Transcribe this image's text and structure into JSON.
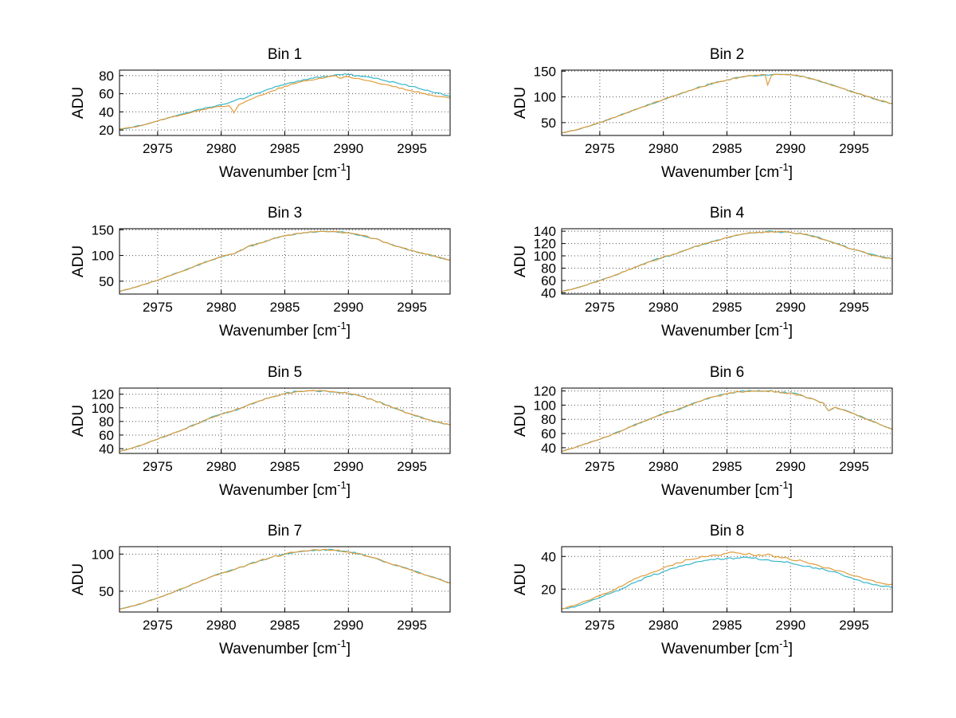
{
  "figure": {
    "background": "#ffffff",
    "ylabel": "ADU",
    "xlabel": "Wavenumber [cm⁻¹]",
    "xlabel_parts": {
      "pre": "Wavenumber [cm",
      "sup": "-1",
      "post": "]"
    },
    "series_colors": {
      "cyan": "#35b6c9",
      "orange": "#e09c3a"
    }
  },
  "chart_data": [
    {
      "type": "line",
      "title": "Bin 1",
      "xlabel": "Wavenumber [cm⁻¹]",
      "ylabel": "ADU",
      "xlim": [
        2972,
        2998
      ],
      "ylim": [
        14,
        86
      ],
      "xticks": [
        2975,
        2980,
        2985,
        2990,
        2995
      ],
      "yticks": [
        20,
        40,
        60,
        80
      ],
      "grid": true,
      "noise_amp": 0.9,
      "series": [
        {
          "name": "cyan-trace",
          "color": "#35b6c9",
          "x0": 2972,
          "dx": 1,
          "y": [
            21,
            23,
            26,
            30,
            34,
            38,
            42,
            45,
            48,
            52,
            56,
            61,
            66,
            70,
            74,
            77,
            79,
            81,
            81,
            79,
            77,
            74,
            71,
            68,
            64,
            61,
            57
          ]
        },
        {
          "name": "orange-trace",
          "color": "#e09c3a",
          "x": [
            2972,
            2973,
            2974,
            2975,
            2976,
            2977,
            2978,
            2979,
            2980,
            2980.6,
            2981,
            2981.4,
            2982,
            2983,
            2984,
            2985,
            2986,
            2987,
            2988,
            2988.5,
            2989,
            2989.4,
            2990,
            2991,
            2992,
            2993,
            2994,
            2995,
            2996,
            2997,
            2998
          ],
          "y": [
            21,
            23,
            26,
            30,
            34,
            37,
            41,
            44,
            46,
            47,
            39,
            48,
            52,
            58,
            63,
            68,
            72,
            75,
            77,
            79,
            80,
            77,
            79,
            76,
            73,
            70,
            66,
            63,
            60,
            57,
            55
          ]
        }
      ]
    },
    {
      "type": "line",
      "title": "Bin 2",
      "xlabel": "Wavenumber [cm⁻¹]",
      "ylabel": "ADU",
      "xlim": [
        2972,
        2998
      ],
      "ylim": [
        25,
        152
      ],
      "xticks": [
        2975,
        2980,
        2985,
        2990,
        2995
      ],
      "yticks": [
        50,
        100,
        150
      ],
      "grid": true,
      "noise_amp": 1.4,
      "series": [
        {
          "name": "cyan-trace",
          "color": "#35b6c9",
          "x0": 2972,
          "dx": 1,
          "y": [
            30,
            35,
            42,
            50,
            59,
            68,
            77,
            86,
            95,
            103,
            112,
            120,
            127,
            133,
            138,
            141,
            143,
            144,
            143,
            140,
            133,
            125,
            117,
            109,
            101,
            93,
            87
          ]
        },
        {
          "name": "orange-trace",
          "color": "#e09c3a",
          "x": [
            2972,
            2973,
            2974,
            2975,
            2976,
            2977,
            2978,
            2979,
            2980,
            2981,
            2982,
            2983,
            2984,
            2985,
            2986,
            2987,
            2988,
            2988.2,
            2988.5,
            2989,
            2990,
            2991,
            2992,
            2993,
            2994,
            2995,
            2996,
            2997,
            2998
          ],
          "y": [
            30,
            35,
            42,
            50,
            59,
            68,
            77,
            86,
            95,
            103,
            112,
            120,
            127,
            133,
            138,
            141,
            143,
            123,
            142,
            144,
            143,
            140,
            133,
            125,
            117,
            109,
            101,
            93,
            87
          ]
        }
      ]
    },
    {
      "type": "line",
      "title": "Bin 3",
      "xlabel": "Wavenumber [cm⁻¹]",
      "ylabel": "ADU",
      "xlim": [
        2972,
        2998
      ],
      "ylim": [
        25,
        152
      ],
      "xticks": [
        2975,
        2980,
        2985,
        2990,
        2995
      ],
      "yticks": [
        50,
        100,
        150
      ],
      "grid": true,
      "noise_amp": 1.4,
      "series": [
        {
          "name": "cyan-trace",
          "color": "#35b6c9",
          "x0": 2972,
          "dx": 1,
          "y": [
            30,
            37,
            44,
            52,
            61,
            70,
            80,
            89,
            98,
            103,
            116,
            124,
            132,
            138,
            143,
            146,
            147,
            146,
            144,
            139,
            133,
            125,
            117,
            110,
            103,
            97,
            91
          ]
        },
        {
          "name": "orange-trace",
          "color": "#e09c3a",
          "x0": 2972,
          "dx": 1,
          "y": [
            30,
            37,
            44,
            52,
            61,
            70,
            80,
            89,
            98,
            103,
            116,
            124,
            132,
            138,
            143,
            146,
            147,
            146,
            144,
            139,
            133,
            125,
            117,
            110,
            103,
            97,
            91
          ]
        }
      ]
    },
    {
      "type": "line",
      "title": "Bin 4",
      "xlabel": "Wavenumber [cm⁻¹]",
      "ylabel": "ADU",
      "xlim": [
        2972,
        2998
      ],
      "ylim": [
        38,
        144
      ],
      "xticks": [
        2975,
        2980,
        2985,
        2990,
        2995
      ],
      "yticks": [
        40,
        60,
        80,
        100,
        120,
        140
      ],
      "grid": true,
      "noise_amp": 1.3,
      "series": [
        {
          "name": "cyan-trace",
          "color": "#35b6c9",
          "x0": 2972,
          "dx": 1,
          "y": [
            42,
            47,
            53,
            60,
            67,
            75,
            83,
            91,
            98,
            103,
            111,
            118,
            124,
            130,
            134,
            137,
            139,
            139,
            138,
            135,
            131,
            124,
            117,
            110,
            104,
            99,
            95
          ]
        },
        {
          "name": "orange-trace",
          "color": "#e09c3a",
          "x0": 2972,
          "dx": 1,
          "y": [
            42,
            47,
            53,
            60,
            67,
            75,
            83,
            91,
            98,
            103,
            111,
            118,
            124,
            130,
            134,
            137,
            139,
            139,
            138,
            135,
            131,
            124,
            117,
            110,
            104,
            99,
            95
          ]
        }
      ]
    },
    {
      "type": "line",
      "title": "Bin 5",
      "xlabel": "Wavenumber [cm⁻¹]",
      "ylabel": "ADU",
      "xlim": [
        2972,
        2998
      ],
      "ylim": [
        33,
        129
      ],
      "xticks": [
        2975,
        2980,
        2985,
        2990,
        2995
      ],
      "yticks": [
        40,
        60,
        80,
        100,
        120
      ],
      "grid": true,
      "noise_amp": 1.2,
      "series": [
        {
          "name": "cyan-trace",
          "color": "#35b6c9",
          "x0": 2972,
          "dx": 1,
          "y": [
            36,
            41,
            47,
            54,
            61,
            68,
            76,
            84,
            91,
            96,
            103,
            110,
            116,
            121,
            124,
            125,
            125,
            123,
            121,
            117,
            111,
            104,
            97,
            90,
            84,
            79,
            75
          ]
        },
        {
          "name": "orange-trace",
          "color": "#e09c3a",
          "x0": 2972,
          "dx": 1,
          "y": [
            36,
            41,
            47,
            54,
            61,
            68,
            76,
            84,
            91,
            96,
            103,
            110,
            116,
            121,
            124,
            125,
            125,
            123,
            121,
            117,
            111,
            104,
            97,
            90,
            84,
            79,
            75
          ]
        }
      ]
    },
    {
      "type": "line",
      "title": "Bin 6",
      "xlabel": "Wavenumber [cm⁻¹]",
      "ylabel": "ADU",
      "xlim": [
        2972,
        2998
      ],
      "ylim": [
        32,
        124
      ],
      "xticks": [
        2975,
        2980,
        2985,
        2990,
        2995
      ],
      "yticks": [
        40,
        60,
        80,
        100,
        120
      ],
      "grid": true,
      "noise_amp": 1.2,
      "series": [
        {
          "name": "cyan-trace",
          "color": "#35b6c9",
          "x": [
            2972,
            2973,
            2974,
            2975,
            2976,
            2977,
            2978,
            2979,
            2980,
            2981,
            2982,
            2983,
            2984,
            2985,
            2986,
            2987,
            2988,
            2989,
            2990,
            2991,
            2992,
            2992.6,
            2993,
            2993.5,
            2994,
            2995,
            2996,
            2997,
            2998
          ],
          "y": [
            35,
            40,
            46,
            52,
            59,
            66,
            74,
            81,
            88,
            93,
            100,
            106,
            112,
            116,
            119,
            120,
            120,
            119,
            117,
            113,
            107,
            103,
            92,
            97,
            94,
            88,
            80,
            73,
            66
          ]
        },
        {
          "name": "orange-trace",
          "color": "#e09c3a",
          "x": [
            2972,
            2973,
            2974,
            2975,
            2976,
            2977,
            2978,
            2979,
            2980,
            2981,
            2982,
            2983,
            2984,
            2985,
            2986,
            2987,
            2988,
            2989,
            2990,
            2991,
            2992,
            2992.6,
            2993,
            2993.5,
            2994,
            2995,
            2996,
            2997,
            2998
          ],
          "y": [
            35,
            40,
            46,
            52,
            59,
            66,
            74,
            81,
            88,
            93,
            100,
            106,
            112,
            116,
            119,
            120,
            120,
            119,
            117,
            113,
            107,
            103,
            92,
            97,
            94,
            88,
            80,
            73,
            66
          ]
        }
      ]
    },
    {
      "type": "line",
      "title": "Bin 7",
      "xlabel": "Wavenumber [cm⁻¹]",
      "ylabel": "ADU",
      "xlim": [
        2972,
        2998
      ],
      "ylim": [
        22,
        110
      ],
      "xticks": [
        2975,
        2980,
        2985,
        2990,
        2995
      ],
      "yticks": [
        50,
        100
      ],
      "grid": true,
      "noise_amp": 1.0,
      "series": [
        {
          "name": "cyan-trace",
          "color": "#35b6c9",
          "x0": 2972,
          "dx": 1,
          "y": [
            26,
            30,
            35,
            41,
            47,
            54,
            61,
            68,
            74,
            79,
            85,
            91,
            96,
            100,
            103,
            105,
            106,
            105,
            103,
            100,
            95,
            89,
            84,
            78,
            72,
            67,
            61
          ]
        },
        {
          "name": "orange-trace",
          "color": "#e09c3a",
          "x0": 2972,
          "dx": 1,
          "y": [
            26,
            30,
            35,
            41,
            47,
            54,
            61,
            68,
            74,
            79,
            85,
            91,
            96,
            100,
            103,
            105,
            106,
            105,
            103,
            100,
            95,
            89,
            84,
            78,
            72,
            67,
            61
          ]
        }
      ]
    },
    {
      "type": "line",
      "title": "Bin 8",
      "xlabel": "Wavenumber [cm⁻¹]",
      "ylabel": "ADU",
      "xlim": [
        2972,
        2998
      ],
      "ylim": [
        6,
        46
      ],
      "xticks": [
        2975,
        2980,
        2985,
        2990,
        2995
      ],
      "yticks": [
        20,
        40
      ],
      "grid": true,
      "noise_amp": 0.7,
      "series": [
        {
          "name": "cyan-trace",
          "color": "#35b6c9",
          "x0": 2972,
          "dx": 1,
          "y": [
            8,
            9,
            12,
            15,
            18,
            21,
            25,
            28,
            31,
            33,
            35,
            37,
            38,
            39,
            39,
            39,
            38,
            37,
            36,
            34,
            33,
            31,
            29,
            26,
            24,
            22,
            21
          ]
        },
        {
          "name": "orange-trace",
          "color": "#e09c3a",
          "x0": 2972,
          "dx": 1,
          "y": [
            8,
            10,
            13,
            16,
            19,
            23,
            27,
            30,
            33,
            36,
            38,
            40,
            41,
            42,
            42,
            41,
            41,
            40,
            38,
            37,
            35,
            33,
            31,
            28,
            26,
            24,
            23
          ]
        }
      ]
    }
  ]
}
